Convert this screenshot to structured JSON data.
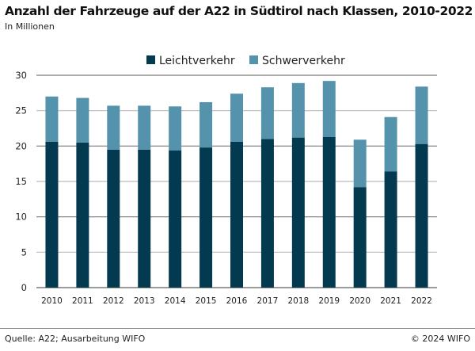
{
  "header": {
    "title": "Anzahl der Fahrzeuge auf der A22 in Südtirol nach Klassen, 2010-2022",
    "subtitle": "In Millionen"
  },
  "footer": {
    "source": "Quelle: A22; Ausarbeitung WIFO",
    "copyright": "© 2024 WIFO"
  },
  "chart_data": {
    "type": "bar",
    "stacked": true,
    "title": "Anzahl der Fahrzeuge auf der A22 in Südtirol nach Klassen, 2010-2022",
    "ylabel": "In Millionen",
    "xlabel": "",
    "ylim": [
      0,
      30
    ],
    "yticks": [
      0,
      5,
      10,
      15,
      20,
      25,
      30
    ],
    "grid": true,
    "legend": "top-center",
    "categories": [
      "2010",
      "2011",
      "2012",
      "2013",
      "2014",
      "2015",
      "2016",
      "2017",
      "2018",
      "2019",
      "2020",
      "2021",
      "2022"
    ],
    "series": [
      {
        "name": "Leichtverkehr",
        "color": "#033a4f",
        "values": [
          20.6,
          20.5,
          19.5,
          19.5,
          19.4,
          19.8,
          20.6,
          21.0,
          21.2,
          21.3,
          14.2,
          16.4,
          20.3
        ]
      },
      {
        "name": "Schwerverkehr",
        "color": "#5593ad",
        "values": [
          6.4,
          6.3,
          6.2,
          6.2,
          6.2,
          6.4,
          6.8,
          7.3,
          7.7,
          7.9,
          6.7,
          7.7,
          8.1
        ]
      }
    ]
  }
}
